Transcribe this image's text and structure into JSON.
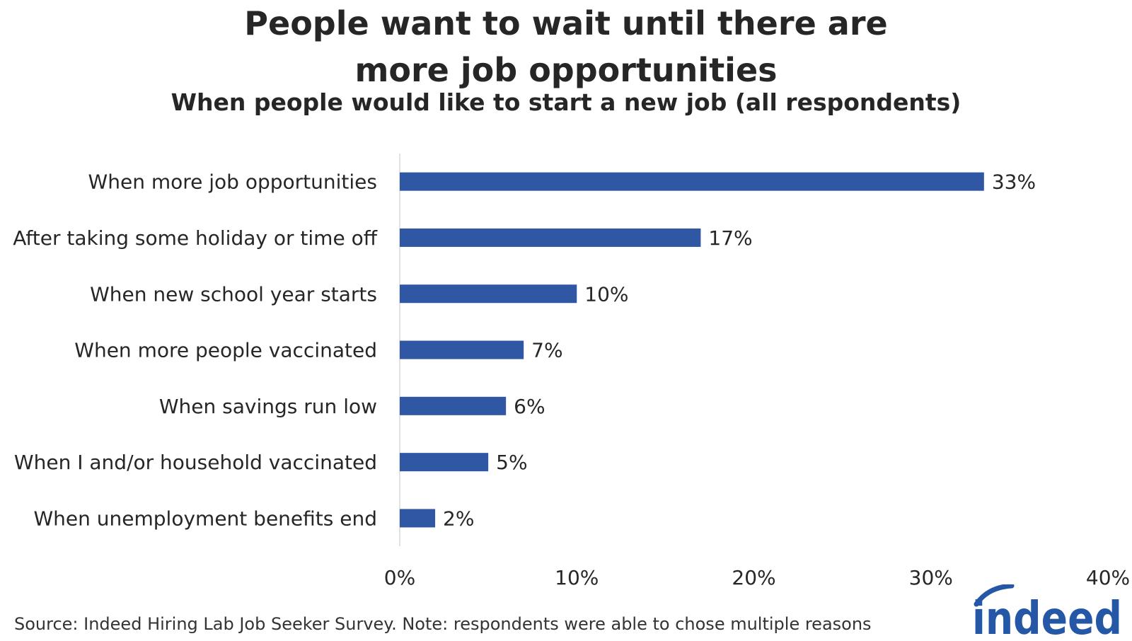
{
  "chart_data": {
    "type": "bar",
    "orientation": "horizontal",
    "title_lines": [
      "People want to wait until there are",
      "more job opportunities"
    ],
    "subtitle": "When people would like to start a new job (all respondents)",
    "categories": [
      "When more job opportunities",
      "After taking some holiday or time off",
      "When new school year starts",
      "When more people vaccinated",
      "When savings run low",
      "When I and/or household vaccinated",
      "When unemployment benefits end"
    ],
    "values": [
      33,
      17,
      10,
      7,
      6,
      5,
      2
    ],
    "data_labels": [
      "33%",
      "17%",
      "10%",
      "7%",
      "6%",
      "5%",
      "2%"
    ],
    "xlim": [
      0,
      40
    ],
    "xticks": [
      0,
      10,
      20,
      30,
      40
    ],
    "xtick_labels": [
      "0%",
      "10%",
      "20%",
      "30%",
      "40%"
    ],
    "grid": false,
    "bar_color": "#2f57a4"
  },
  "footer": {
    "source": "Source: Indeed Hiring Lab Job Seeker Survey. Note: respondents were able to chose multiple reasons"
  },
  "logo": {
    "text": "indeed",
    "color": "#2557a7"
  }
}
